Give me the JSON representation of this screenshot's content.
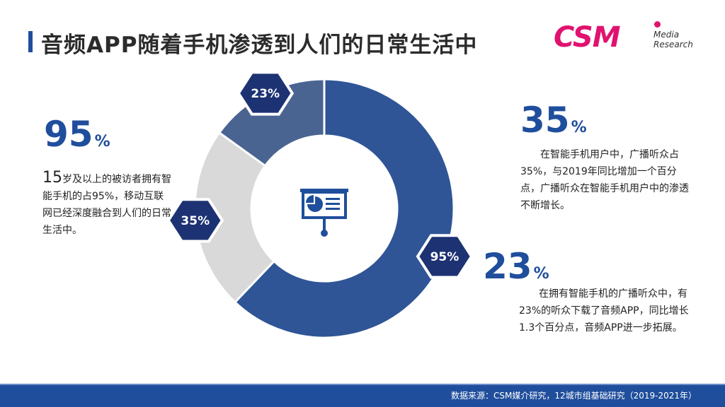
{
  "title": "音频APP随着手机渗透到人们的日常生活中",
  "logo": {
    "main": "CSM",
    "sub_line1": "Media",
    "sub_line2": "Research"
  },
  "left_stat": {
    "value": "95",
    "unit": "%",
    "lead": "15",
    "text": "岁及以上的被访者拥有智能手机的占95%，移动互联网已经深度融合到人们的日常生活中。"
  },
  "right_stat_1": {
    "value": "35",
    "unit": "%",
    "text": "在智能手机用户中，广播听众占35%，与2019年同比增加一个百分点，广播听众在智能手机用户中的渗透不断增长。"
  },
  "right_stat_2": {
    "value": "23",
    "unit": "%",
    "text": "在拥有智能手机的广播听众中，有23%的听众下载了音频APP，同比增长1.3个百分点，音频APP进一步拓展。"
  },
  "chart_data": {
    "type": "pie",
    "style": "donut",
    "start_angle_deg": 0,
    "direction": "clockwise",
    "categories": [
      "95%",
      "35%",
      "23%"
    ],
    "values": [
      95,
      35,
      23
    ],
    "labels": [
      "95%",
      "35%",
      "23%"
    ],
    "colors": [
      "#2f5597",
      "#d9d9d9",
      "#4a6492"
    ],
    "center_icon": "presentation-board-pie-icon"
  },
  "footer": {
    "source": "数据来源：CSM媒介研究，12城市组基础研究（2019-2021年）"
  },
  "colors": {
    "accent": "#1f4e9c",
    "brand": "#e0126f",
    "hex_label": "#1d3273"
  }
}
